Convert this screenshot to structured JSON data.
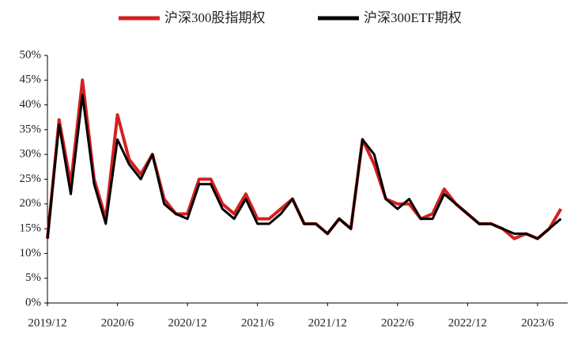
{
  "chart_data": {
    "type": "line",
    "categories": [
      "2019/12",
      null,
      null,
      null,
      null,
      null,
      "2020/6",
      null,
      null,
      null,
      null,
      null,
      "2020/12",
      null,
      null,
      null,
      null,
      null,
      "2021/6",
      null,
      null,
      null,
      null,
      null,
      "2021/12",
      null,
      null,
      null,
      null,
      null,
      "2022/6",
      null,
      null,
      null,
      null,
      null,
      "2022/12",
      null,
      null,
      null,
      null,
      null,
      "2023/6",
      null,
      null
    ],
    "series": [
      {
        "name": "沪深300股指期权",
        "color": "#d42020",
        "values": [
          13,
          37,
          24,
          45,
          25,
          17,
          38,
          29,
          26,
          30,
          21,
          18,
          18,
          25,
          25,
          20,
          18,
          22,
          17,
          17,
          19,
          21,
          16,
          16,
          14,
          17,
          15,
          33,
          28,
          21,
          20,
          20,
          17,
          18,
          23,
          20,
          18,
          16,
          16,
          15,
          13,
          14,
          13,
          15,
          19
        ]
      },
      {
        "name": "沪深300ETF期权",
        "color": "#000000",
        "values": [
          13,
          36,
          22,
          42,
          24,
          16,
          33,
          28,
          25,
          30,
          20,
          18,
          17,
          24,
          24,
          19,
          17,
          21,
          16,
          16,
          18,
          21,
          16,
          16,
          14,
          17,
          15,
          33,
          30,
          21,
          19,
          21,
          17,
          17,
          22,
          20,
          18,
          16,
          16,
          15,
          14,
          14,
          13,
          15,
          17
        ]
      }
    ],
    "ylim": [
      0,
      50
    ],
    "yticks": [
      {
        "value": 0,
        "label": "0%"
      },
      {
        "value": 5,
        "label": "5%"
      },
      {
        "value": 10,
        "label": "10%"
      },
      {
        "value": 15,
        "label": "15%"
      },
      {
        "value": 20,
        "label": "20%"
      },
      {
        "value": 25,
        "label": "25%"
      },
      {
        "value": 30,
        "label": "30%"
      },
      {
        "value": 35,
        "label": "35%"
      },
      {
        "value": 40,
        "label": "40%"
      },
      {
        "value": 45,
        "label": "45%"
      },
      {
        "value": 50,
        "label": "50%"
      }
    ],
    "legend": "top"
  }
}
